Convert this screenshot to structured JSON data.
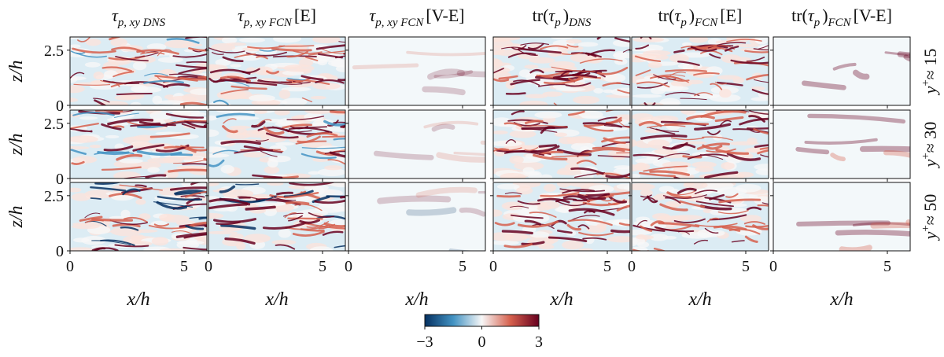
{
  "chart_data": {
    "type": "heatmap-grid",
    "columns": [
      [
        {
          "text": "τ",
          "italic": true
        },
        {
          "text": "p, xy DNS",
          "sub": true
        }
      ],
      [
        {
          "text": "τ",
          "italic": true
        },
        {
          "text": "p, xy FCN",
          "sub": true
        },
        {
          "text": "[E]"
        }
      ],
      [
        {
          "text": "τ",
          "italic": true
        },
        {
          "text": "p, xy FCN",
          "sub": true
        },
        {
          "text": "[V-E]"
        }
      ],
      [
        {
          "text": "tr("
        },
        {
          "text": "τ",
          "italic": true
        },
        {
          "text": "p",
          "sub": true
        },
        {
          "text": ")"
        },
        {
          "text": "DNS",
          "sub": true
        }
      ],
      [
        {
          "text": "tr("
        },
        {
          "text": "τ",
          "italic": true
        },
        {
          "text": "p",
          "sub": true
        },
        {
          "text": ")"
        },
        {
          "text": "FCN",
          "sub": true
        },
        {
          "text": "[E]"
        }
      ],
      [
        {
          "text": "tr("
        },
        {
          "text": "τ",
          "italic": true
        },
        {
          "text": "p",
          "sub": true
        },
        {
          "text": ")"
        },
        {
          "text": "FCN",
          "sub": true
        },
        {
          "text": "[V-E]"
        }
      ]
    ],
    "rows": [
      [
        {
          "text": "y",
          "italic": true
        },
        {
          "text": "+",
          "sup": true
        },
        {
          "text": "≈ 15"
        }
      ],
      [
        {
          "text": "y",
          "italic": true
        },
        {
          "text": "+",
          "sup": true
        },
        {
          "text": "≈ 30"
        }
      ],
      [
        {
          "text": "y",
          "italic": true
        },
        {
          "text": "+",
          "sup": true
        },
        {
          "text": "≈ 50"
        }
      ]
    ],
    "xlabel": "x/h",
    "ylabel": "z/h",
    "xlim": [
      0,
      6
    ],
    "xticks": [
      0,
      5
    ],
    "ylim": [
      0,
      3.1
    ],
    "yticks": [
      0,
      2.5
    ],
    "colorbar": {
      "lim": [
        -3,
        3
      ],
      "ticks": [
        {
          "value": -3,
          "label": "−3"
        },
        0,
        3
      ],
      "colors": [
        "#053061",
        "#4393c3",
        "#f7f7f7",
        "#d6604d",
        "#67001f"
      ]
    }
  }
}
